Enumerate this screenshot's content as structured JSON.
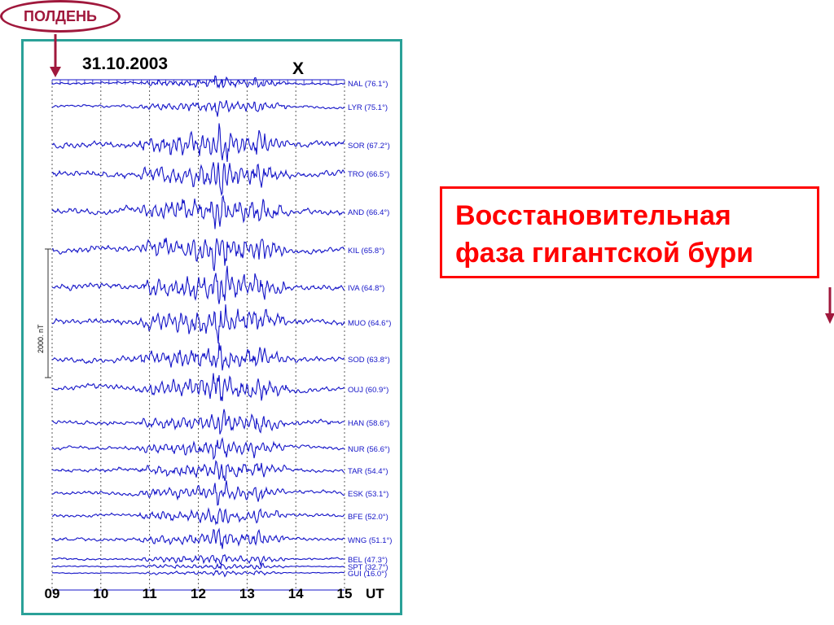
{
  "noon_label": "ПОЛДЕНЬ",
  "caption": {
    "line1": "Восстановительная",
    "line2": "фаза гигантской бури"
  },
  "colors": {
    "noon": "#a0183c",
    "frame": "#2aa198",
    "caption": "#ff0000",
    "trace": "#1414c8",
    "text": "#000000"
  },
  "chart_data": {
    "type": "line",
    "title": "31.10.2003",
    "component": "X",
    "xlabel": "UT",
    "x_ticks": [
      "09",
      "10",
      "11",
      "12",
      "13",
      "14",
      "15"
    ],
    "xlim": [
      9,
      15
    ],
    "scale_bar_label": "2000. nT",
    "grid": "dotted vertical lines at each hour",
    "stations": [
      {
        "code": "NAL",
        "label": "NAL (76.1°)"
      },
      {
        "code": "LYR",
        "label": "LYR (75.1°)"
      },
      {
        "code": "SOR",
        "label": "SOR (67.2°)"
      },
      {
        "code": "TRO",
        "label": "TRO (66.5°)"
      },
      {
        "code": "AND",
        "label": "AND (66.4°)"
      },
      {
        "code": "KIL",
        "label": "KIL (65.8°)"
      },
      {
        "code": "IVA",
        "label": "IVA (64.8°)"
      },
      {
        "code": "MUO",
        "label": "MUO (64.6°)"
      },
      {
        "code": "SOD",
        "label": "SOD (63.8°)"
      },
      {
        "code": "OUJ",
        "label": "OUJ (60.9°)"
      },
      {
        "code": "HAN",
        "label": "HAN (58.6°)"
      },
      {
        "code": "NUR",
        "label": "NUR (56.6°)"
      },
      {
        "code": "TAR",
        "label": "TAR (54.4°)"
      },
      {
        "code": "ESK",
        "label": "ESK (53.1°)"
      },
      {
        "code": "BFE",
        "label": "BFE (52.0°)"
      },
      {
        "code": "WNG",
        "label": "WNG (51.1°)"
      },
      {
        "code": "BEL",
        "label": "BEL (47.3°)"
      },
      {
        "code": "SPT",
        "label": "SPT (32.7°)"
      },
      {
        "code": "GUI",
        "label": "GUI (16.0°)"
      }
    ]
  }
}
